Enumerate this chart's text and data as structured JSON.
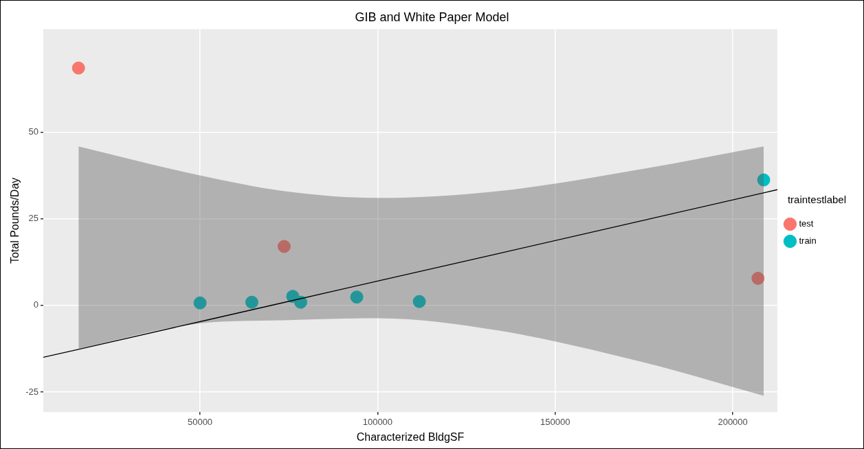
{
  "chart_data": {
    "type": "scatter",
    "title": "GIB and White Paper Model",
    "xlabel": "Characterized BldgSF",
    "ylabel": "Total Pounds/Day",
    "legend_title": "traintestlabel",
    "legend": "right",
    "grid": true,
    "xlim": [
      5870,
      212550
    ],
    "xticks": [
      50000,
      100000,
      150000,
      200000
    ],
    "ylim": [
      -30.8,
      79.7
    ],
    "yticks": [
      -25,
      0,
      25,
      50
    ],
    "series": [
      {
        "name": "test",
        "color": "#f8766d",
        "marker": "circle",
        "x": [
          15790,
          73680,
          207100
        ],
        "values": [
          68.5,
          17.0,
          7.8
        ]
      },
      {
        "name": "train",
        "color": "#00bfc4",
        "marker": "circle",
        "x": [
          50000,
          64580,
          76100,
          78340,
          94130,
          111740,
          208700
        ],
        "values": [
          0.7,
          0.9,
          2.6,
          0.9,
          2.4,
          1.1,
          36.2
        ]
      },
      {
        "type": "line",
        "color": "#000000",
        "x": [
          5870,
          15790,
          50000,
          73480,
          100000,
          134210,
          174700,
          208700,
          212550
        ],
        "values": [
          -15.0,
          -12.7,
          -4.7,
          0.8,
          7.0,
          15.0,
          24.5,
          32.5,
          33.4
        ],
        "lower": [
          null,
          -12.5,
          -5.2,
          -4.3,
          -3.7,
          -7.3,
          -16.4,
          -26.1,
          null
        ],
        "upper": [
          null,
          45.9,
          37.5,
          33.0,
          31.0,
          33.0,
          39.4,
          45.9,
          null
        ]
      }
    ]
  }
}
